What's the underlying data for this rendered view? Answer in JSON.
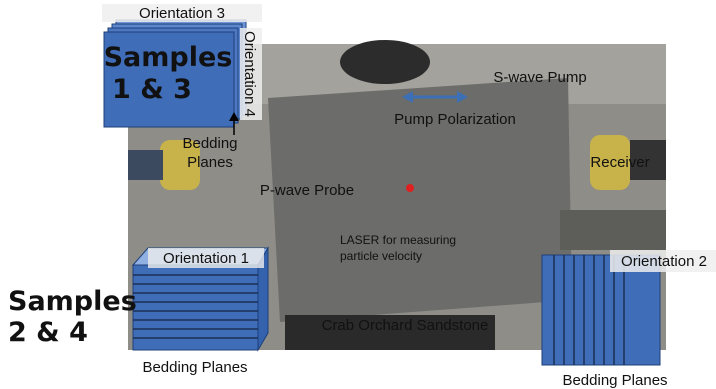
{
  "top_left_sample": {
    "orientation_top": "Orientation 3",
    "samples": [
      "Samples",
      "1 & 3"
    ],
    "orientation_side": "Orientation 4",
    "bedding": [
      "Bedding",
      "Planes"
    ]
  },
  "photo_labels": {
    "s_wave_pump": "S-wave Pump",
    "pump_polarization": "Pump Polarization",
    "receiver": "Receiver",
    "p_wave_probe": "P-wave Probe",
    "laser": [
      "LASER for measuring",
      "particle velocity"
    ],
    "sandstone": "Crab Orchard Sandstone"
  },
  "bottom_left_sample": {
    "orientation": "Orientation 1",
    "samples": [
      "Samples",
      "2 & 4"
    ],
    "bedding": "Bedding Planes"
  },
  "bottom_right_sample": {
    "orientation": "Orientation 2",
    "bedding": "Bedding Planes"
  }
}
